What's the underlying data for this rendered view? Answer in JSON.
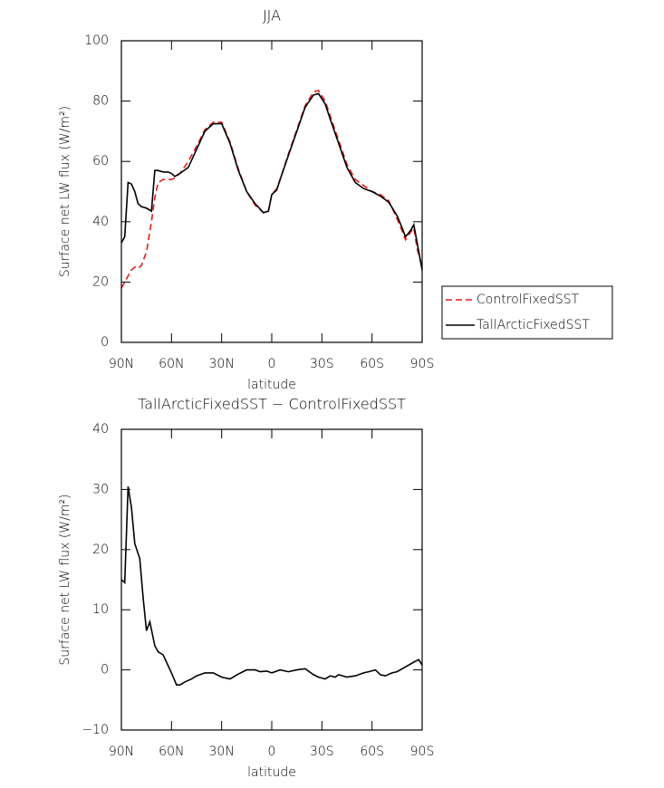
{
  "chart_data": [
    {
      "type": "line",
      "title": "JJA",
      "xlabel": "latitude",
      "ylabel": "Surface net LW flux (W/m²)",
      "x": [
        90,
        88,
        86,
        84,
        82,
        80,
        78,
        75,
        72,
        70,
        68,
        65,
        62,
        60,
        58,
        55,
        50,
        45,
        40,
        35,
        30,
        25,
        20,
        15,
        10,
        5,
        2,
        0,
        -3,
        -5,
        -10,
        -15,
        -20,
        -25,
        -28,
        -32,
        -35,
        -40,
        -45,
        -50,
        -55,
        -60,
        -65,
        -70,
        -75,
        -78,
        -80,
        -83,
        -85,
        -87,
        -90
      ],
      "series": [
        {
          "name": "ControlFixedSST",
          "color": "#e41a1c",
          "linestyle": "dashed",
          "values": [
            18,
            20,
            22,
            24,
            25,
            24.5,
            25.5,
            30,
            40,
            48,
            53,
            54,
            54,
            54,
            54.5,
            56,
            60,
            65,
            70.5,
            73,
            73,
            66.5,
            57.5,
            50,
            45.5,
            43,
            43.5,
            49,
            51,
            54,
            62.5,
            70.5,
            78.5,
            83,
            83.5,
            80,
            75,
            67,
            59,
            54,
            52,
            50,
            49,
            47,
            41,
            37,
            34,
            36.5,
            38,
            31,
            25
          ]
        },
        {
          "name": "TallArcticFixedSST",
          "color": "#000000",
          "linestyle": "solid",
          "values": [
            33,
            35,
            53,
            52.5,
            50,
            46,
            45,
            44.5,
            43.5,
            57,
            57,
            56.5,
            56.5,
            56,
            55,
            56,
            58,
            64,
            70,
            72.5,
            72.5,
            66,
            57,
            50,
            46,
            43,
            43.5,
            49,
            50.5,
            54,
            62,
            70,
            78,
            82,
            82.5,
            79,
            74,
            66,
            58,
            53,
            51,
            50,
            48.5,
            46.5,
            42,
            38,
            35,
            37,
            39,
            33,
            24
          ]
        }
      ],
      "xlim": [
        90,
        -90
      ],
      "xticks": [
        {
          "value": 90,
          "label": "90N"
        },
        {
          "value": 60,
          "label": "60N"
        },
        {
          "value": 30,
          "label": "30N"
        },
        0,
        {
          "value": -30,
          "label": "30S"
        },
        {
          "value": -60,
          "label": "60S"
        },
        {
          "value": -90,
          "label": "90S"
        }
      ],
      "ylim": [
        0,
        100
      ],
      "yticks": [
        0,
        20,
        40,
        60,
        80,
        100
      ],
      "legend": "right"
    },
    {
      "type": "line",
      "title": "TallArcticFixedSST − ControlFixedSST",
      "xlabel": "latitude",
      "ylabel": "Surface net LW flux (W/m²)",
      "x": [
        90,
        88,
        86,
        84,
        82,
        79,
        77,
        75,
        73,
        70,
        68,
        65,
        60,
        57,
        55,
        52,
        48,
        45,
        40,
        35,
        30,
        25,
        20,
        15,
        10,
        7,
        3,
        0,
        -5,
        -10,
        -15,
        -20,
        -25,
        -28,
        -32,
        -35,
        -38,
        -40,
        -45,
        -50,
        -55,
        -58,
        -62,
        -65,
        -68,
        -72,
        -75,
        -80,
        -85,
        -88,
        -90
      ],
      "series": [
        {
          "color": "#000000",
          "linestyle": "solid",
          "values": [
            15,
            14.5,
            30.5,
            27,
            21,
            18.5,
            12,
            6.5,
            8,
            4,
            3,
            2.5,
            -0.5,
            -2.5,
            -2.5,
            -2,
            -1.5,
            -1,
            -0.5,
            -0.5,
            -1.2,
            -1.5,
            -0.7,
            0,
            0,
            -0.3,
            -0.2,
            -0.5,
            0,
            -0.3,
            0,
            0.2,
            -0.8,
            -1.2,
            -1.5,
            -1,
            -1.2,
            -0.8,
            -1.2,
            -1,
            -0.5,
            -0.3,
            0,
            -0.8,
            -1,
            -0.5,
            -0.3,
            0.5,
            1.3,
            1.7,
            0.8
          ]
        }
      ],
      "xlim": [
        90,
        -90
      ],
      "xticks": [
        {
          "value": 90,
          "label": "90N"
        },
        {
          "value": 60,
          "label": "60N"
        },
        {
          "value": 30,
          "label": "30N"
        },
        0,
        {
          "value": -30,
          "label": "30S"
        },
        {
          "value": -60,
          "label": "60S"
        },
        {
          "value": -90,
          "label": "90S"
        }
      ],
      "ylim": [
        -10,
        40
      ],
      "yticks": [
        {
          "value": -10,
          "label": "−10"
        },
        0,
        10,
        20,
        30,
        40
      ]
    }
  ]
}
